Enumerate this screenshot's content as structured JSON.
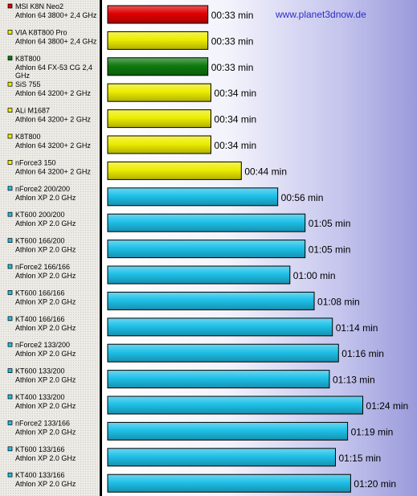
{
  "watermark": "www.planet3dnow.de",
  "chart_data": {
    "type": "bar",
    "orientation": "horizontal",
    "unit": "mm:ss",
    "rows": [
      {
        "name": "MSI K8N Neo2",
        "cpu": "Athlon 64 3800+ 2,4 GHz",
        "seconds": 33,
        "label": "00:33 min",
        "color": "#e00000"
      },
      {
        "name": "VIA K8T800 Pro",
        "cpu": "Athlon 64 3800+ 2,4 GHz",
        "seconds": 33,
        "label": "00:33 min",
        "color": "#ecec00"
      },
      {
        "name": "K8T800",
        "cpu": "Athlon 64 FX-53 CG 2,4 GHz",
        "seconds": 33,
        "label": "00:33 min",
        "color": "#0f7a0f"
      },
      {
        "name": "SiS 755",
        "cpu": "Athlon 64 3200+ 2 GHz",
        "seconds": 34,
        "label": "00:34 min",
        "color": "#ecec00"
      },
      {
        "name": "ALi M1687",
        "cpu": "Athlon 64 3200+ 2 GHz",
        "seconds": 34,
        "label": "00:34 min",
        "color": "#ecec00"
      },
      {
        "name": "K8T800",
        "cpu": "Athlon 64 3200+ 2 GHz",
        "seconds": 34,
        "label": "00:34 min",
        "color": "#ecec00"
      },
      {
        "name": "nForce3 150",
        "cpu": "Athlon 64 3200+ 2 GHz",
        "seconds": 44,
        "label": "00:44 min",
        "color": "#ecec00"
      },
      {
        "name": "nForce2 200/200",
        "cpu": "Athlon XP 2.0 GHz",
        "seconds": 56,
        "label": "00:56 min",
        "color": "#1ec0e8"
      },
      {
        "name": "KT600 200/200",
        "cpu": "Athlon XP 2.0 GHz",
        "seconds": 65,
        "label": "01:05 min",
        "color": "#1ec0e8"
      },
      {
        "name": "KT600 166/200",
        "cpu": "Athlon XP 2.0 GHz",
        "seconds": 65,
        "label": "01:05 min",
        "color": "#1ec0e8"
      },
      {
        "name": "nForce2 166/166",
        "cpu": "Athlon XP 2.0 GHz",
        "seconds": 60,
        "label": "01:00 min",
        "color": "#1ec0e8"
      },
      {
        "name": "KT600 166/166",
        "cpu": "Athlon XP 2.0 GHz",
        "seconds": 68,
        "label": "01:08 min",
        "color": "#1ec0e8"
      },
      {
        "name": "KT400 166/166",
        "cpu": "Athlon XP 2.0 GHz",
        "seconds": 74,
        "label": "01:14 min",
        "color": "#1ec0e8"
      },
      {
        "name": "nForce2 133/200",
        "cpu": "Athlon XP 2.0 GHz",
        "seconds": 76,
        "label": "01:16 min",
        "color": "#1ec0e8"
      },
      {
        "name": "KT600 133/200",
        "cpu": "Athlon XP 2.0 GHz",
        "seconds": 73,
        "label": "01:13 min",
        "color": "#1ec0e8"
      },
      {
        "name": "KT400 133/200",
        "cpu": "Athlon XP 2.0 GHz",
        "seconds": 84,
        "label": "01:24 min",
        "color": "#1ec0e8"
      },
      {
        "name": "nForce2 133/166",
        "cpu": "Athlon XP 2.0 GHz",
        "seconds": 79,
        "label": "01:19 min",
        "color": "#1ec0e8"
      },
      {
        "name": "KT600 133/166",
        "cpu": "Athlon XP 2.0 GHz",
        "seconds": 75,
        "label": "01:15 min",
        "color": "#1ec0e8"
      },
      {
        "name": "KT400 133/166",
        "cpu": "Athlon XP 2.0 GHz",
        "seconds": 80,
        "label": "01:20 min",
        "color": "#1ec0e8"
      }
    ]
  }
}
